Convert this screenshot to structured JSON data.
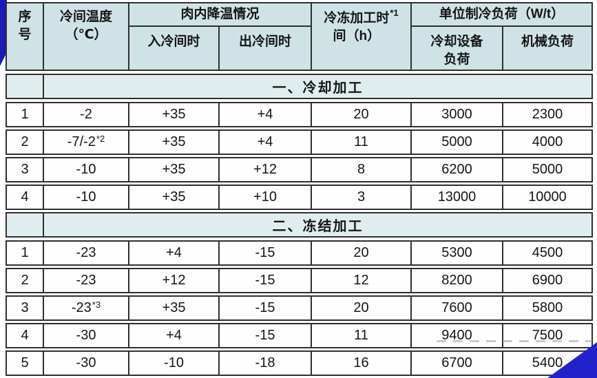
{
  "colors": {
    "border": "#2f2f2f",
    "header_bg": "#cfe3e6",
    "section_bg": "#e0edee",
    "row_bg": "#fefefe",
    "accent_blue": "#2222cc",
    "accent_blue_dark": "#1b1bb5"
  },
  "table": {
    "header": {
      "serial": "序\n号",
      "room_temp": "冷间温度\n（℃）",
      "meat_cooling": "肉内降温情况",
      "entering": "入冷间时",
      "leaving": "出冷间时",
      "freeze_time": "冷冻加工时\n间（h）",
      "freeze_time_sup": "*1",
      "unit_load": "单位制冷负荷（W/t）",
      "equip_load": "冷却设备\n负荷",
      "mech_load": "机械负荷"
    },
    "sections": [
      {
        "title": "一、冷却加工",
        "rows": [
          {
            "no": "1",
            "temp": "-2",
            "in": "+35",
            "out": "+4",
            "hours": "20",
            "equip": "3000",
            "mech": "2300"
          },
          {
            "no": "2",
            "temp": "-7/-2",
            "temp_sup": "*2",
            "in": "+35",
            "out": "+4",
            "hours": "11",
            "equip": "5000",
            "mech": "4000"
          },
          {
            "no": "3",
            "temp": "-10",
            "in": "+35",
            "out": "+12",
            "hours": "8",
            "equip": "6200",
            "mech": "5000"
          },
          {
            "no": "4",
            "temp": "-10",
            "in": "+35",
            "out": "+10",
            "hours": "3",
            "equip": "13000",
            "mech": "10000"
          }
        ]
      },
      {
        "title": "二、冻结加工",
        "rows": [
          {
            "no": "1",
            "temp": "-23",
            "in": "+4",
            "out": "-15",
            "hours": "20",
            "equip": "5300",
            "mech": "4500"
          },
          {
            "no": "2",
            "temp": "-23",
            "in": "+12",
            "out": "-15",
            "hours": "12",
            "equip": "8200",
            "mech": "6900"
          },
          {
            "no": "3",
            "temp": "-23",
            "temp_sup": "*3",
            "in": "+35",
            "out": "-15",
            "hours": "20",
            "equip": "7600",
            "mech": "5800"
          },
          {
            "no": "4",
            "temp": "-30",
            "in": "+4",
            "out": "-15",
            "hours": "11",
            "equip": "9400",
            "mech": "7500"
          },
          {
            "no": "5",
            "temp": "-30",
            "in": "-10",
            "out": "-18",
            "hours": "16",
            "equip": "6700",
            "mech": "5400"
          }
        ]
      }
    ]
  }
}
